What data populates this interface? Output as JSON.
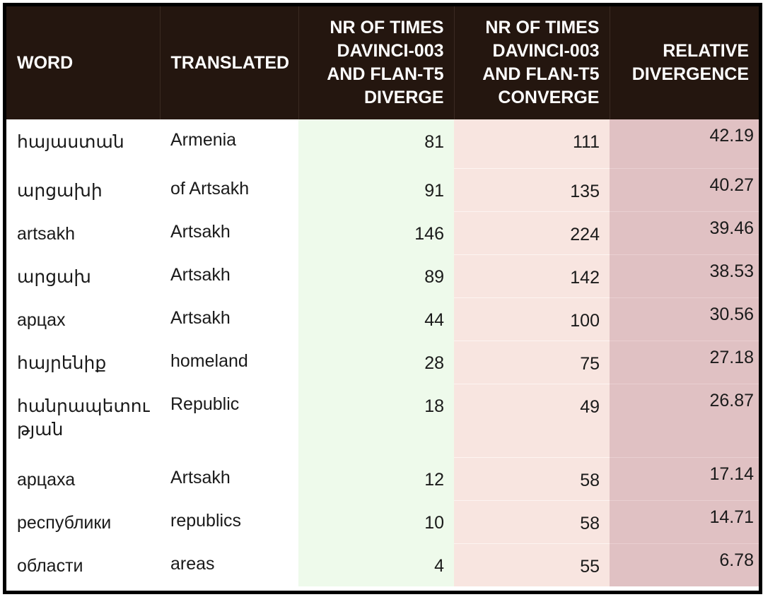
{
  "table": {
    "headers": {
      "word": "WORD",
      "translated": "TRANSLATED",
      "diverge": [
        "NR OF TIMES",
        "DAVINCI-003",
        "AND FLAN-T5",
        "DIVERGE"
      ],
      "converge": [
        "NR OF TIMES",
        "DAVINCI-003",
        "AND FLAN-T5",
        "CONVERGE"
      ],
      "relative": [
        "RELATIVE",
        "DIVERGENCE"
      ]
    },
    "rows": [
      {
        "word": "հայաստան",
        "translated": "Armenia",
        "diverge": "81",
        "converge": "111",
        "relative": "42.19"
      },
      {
        "word": "արցախի",
        "translated": "of Artsakh",
        "diverge": "91",
        "converge": "135",
        "relative": "40.27"
      },
      {
        "word": "artsakh",
        "translated": "Artsakh",
        "diverge": "146",
        "converge": "224",
        "relative": "39.46"
      },
      {
        "word": "արցախ",
        "translated": "Artsakh",
        "diverge": "89",
        "converge": "142",
        "relative": "38.53"
      },
      {
        "word": "арцах",
        "translated": "Artsakh",
        "diverge": "44",
        "converge": "100",
        "relative": "30.56"
      },
      {
        "word": "հայրենիք",
        "translated": "homeland",
        "diverge": "28",
        "converge": "75",
        "relative": "27.18"
      },
      {
        "word": "հանրապետությ ան",
        "word_lines": [
          "հանրապետու",
          "թյան"
        ],
        "translated": "Republic",
        "diverge": "18",
        "converge": "49",
        "relative": "26.87"
      },
      {
        "word": "арцаха",
        "translated": "Artsakh",
        "diverge": "12",
        "converge": "58",
        "relative": "17.14"
      },
      {
        "word": "республики",
        "translated": "republics",
        "diverge": "10",
        "converge": "58",
        "relative": "14.71"
      },
      {
        "word": "области",
        "translated": "areas",
        "diverge": "4",
        "converge": "55",
        "relative": "6.78"
      }
    ]
  },
  "colors": {
    "header_bg": "#24160f",
    "diverge_bg": "#eefaeb",
    "converge_bg": "#f8e5e0",
    "relative_bg": "#e0c1c3"
  }
}
